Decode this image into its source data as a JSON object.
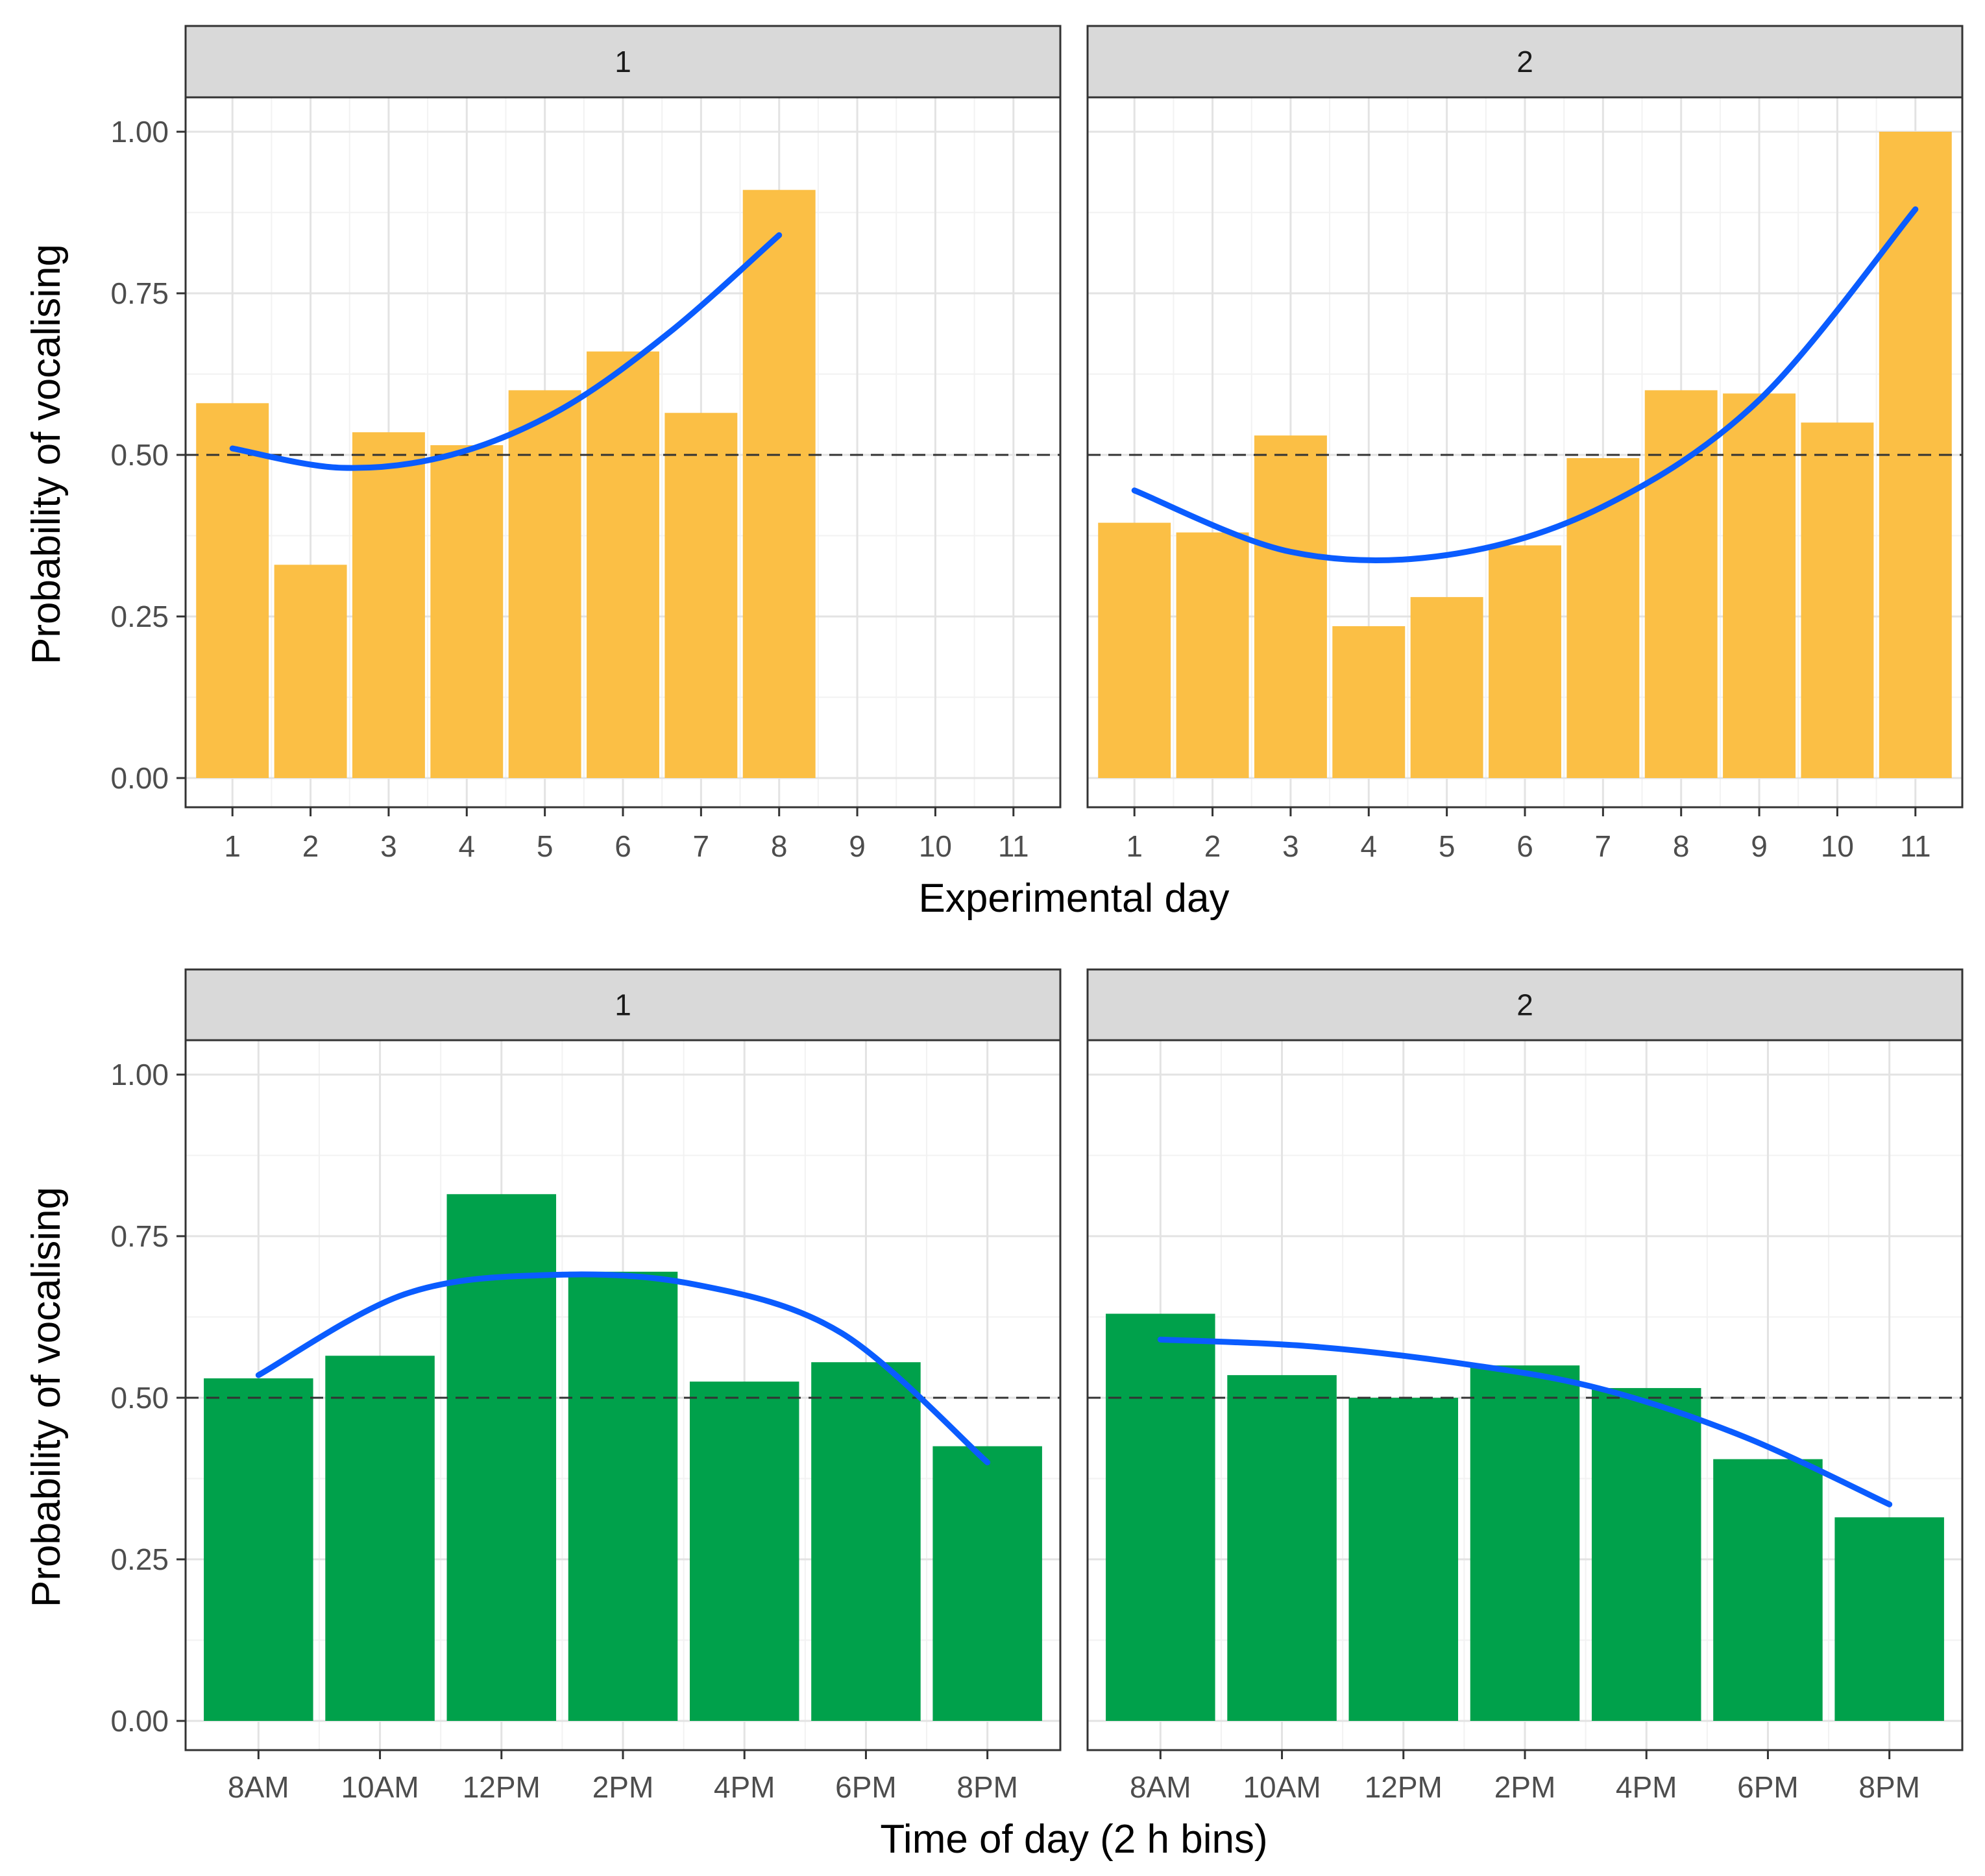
{
  "chart_data": [
    {
      "type": "bar",
      "panel": "top",
      "xlabel": "Experimental day",
      "ylabel": "Probability of vocalising",
      "ylim": [
        0,
        1
      ],
      "yticks": [
        "0.00",
        "0.25",
        "0.50",
        "0.75",
        "1.00"
      ],
      "reference_line": 0.5,
      "bar_color": "#fbbf45",
      "curve_color": "#0a5cff",
      "categories": [
        "1",
        "2",
        "3",
        "4",
        "5",
        "6",
        "7",
        "8",
        "9",
        "10",
        "11"
      ],
      "facets": [
        {
          "label": "1",
          "values": [
            0.58,
            0.33,
            0.535,
            0.515,
            0.6,
            0.66,
            0.565,
            0.91,
            null,
            null,
            null
          ],
          "fit": [
            0.51,
            0.48,
            0.5,
            0.57,
            0.69,
            0.84
          ]
        },
        {
          "label": "2",
          "values": [
            0.395,
            0.38,
            0.53,
            0.235,
            0.28,
            0.36,
            0.495,
            0.6,
            0.595,
            0.55,
            1.0
          ],
          "fit": [
            0.445,
            0.35,
            0.345,
            0.42,
            0.585,
            0.88
          ]
        }
      ]
    },
    {
      "type": "bar",
      "panel": "bottom",
      "xlabel": "Time of day (2 h bins)",
      "ylabel": "Probability of vocalising",
      "ylim": [
        0,
        1
      ],
      "yticks": [
        "0.00",
        "0.25",
        "0.50",
        "0.75",
        "1.00"
      ],
      "reference_line": 0.5,
      "bar_color": "#00a14b",
      "curve_color": "#0a5cff",
      "categories": [
        "8AM",
        "10AM",
        "12PM",
        "2PM",
        "4PM",
        "6PM",
        "8PM"
      ],
      "facets": [
        {
          "label": "1",
          "values": [
            0.53,
            0.565,
            0.815,
            0.695,
            0.525,
            0.555,
            0.425
          ],
          "fit": [
            0.535,
            0.66,
            0.69,
            0.675,
            0.6,
            0.4
          ]
        },
        {
          "label": "2",
          "values": [
            0.63,
            0.535,
            0.5,
            0.55,
            0.515,
            0.405,
            0.315
          ],
          "fit": [
            0.59,
            0.58,
            0.555,
            0.515,
            0.44,
            0.335
          ]
        }
      ]
    }
  ]
}
